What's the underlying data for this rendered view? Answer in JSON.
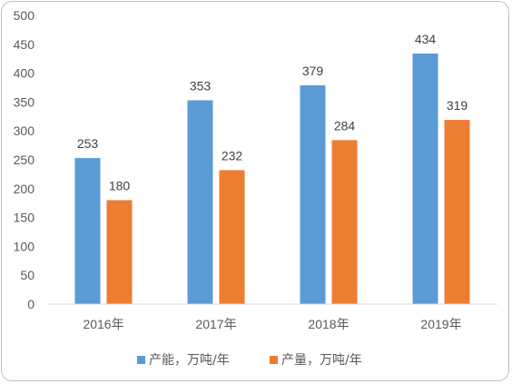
{
  "chart_data": {
    "type": "bar",
    "categories": [
      "2016年",
      "2017年",
      "2018年",
      "2019年"
    ],
    "series": [
      {
        "name": "产能，万吨/年",
        "values": [
          253,
          353,
          379,
          434
        ],
        "color": "#5B9BD5"
      },
      {
        "name": "产量，万吨/年",
        "values": [
          180,
          232,
          284,
          319
        ],
        "color": "#ED7D31"
      }
    ],
    "ylim": [
      0,
      500
    ],
    "yticks": [
      0,
      50,
      100,
      150,
      200,
      250,
      300,
      350,
      400,
      450,
      500
    ],
    "grid": false,
    "data_labels": true,
    "legend": "bottom-center",
    "title": "",
    "xlabel": "",
    "ylabel": ""
  }
}
